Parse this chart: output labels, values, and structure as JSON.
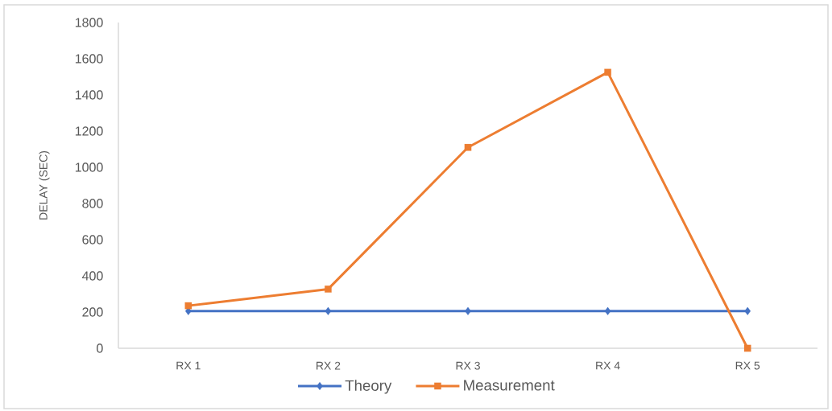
{
  "chart_data": {
    "type": "line",
    "ylabel": "DELAY (SEC)",
    "categories": [
      "RX 1",
      "RX 2",
      "RX 3",
      "RX 4",
      "RX 5"
    ],
    "series": [
      {
        "name": "Theory",
        "color": "#4472c4",
        "marker": "diamond",
        "values": [
          205,
          205,
          205,
          205,
          205
        ]
      },
      {
        "name": "Measurement",
        "color": "#ed7d31",
        "marker": "square",
        "values": [
          235,
          327,
          1110,
          1525,
          0
        ]
      }
    ],
    "ylim": [
      0,
      1800
    ],
    "yticks": [
      0,
      200,
      400,
      600,
      800,
      1000,
      1200,
      1400,
      1600,
      1800
    ],
    "grid": false,
    "legend": "bottom",
    "line_style": "solid"
  }
}
